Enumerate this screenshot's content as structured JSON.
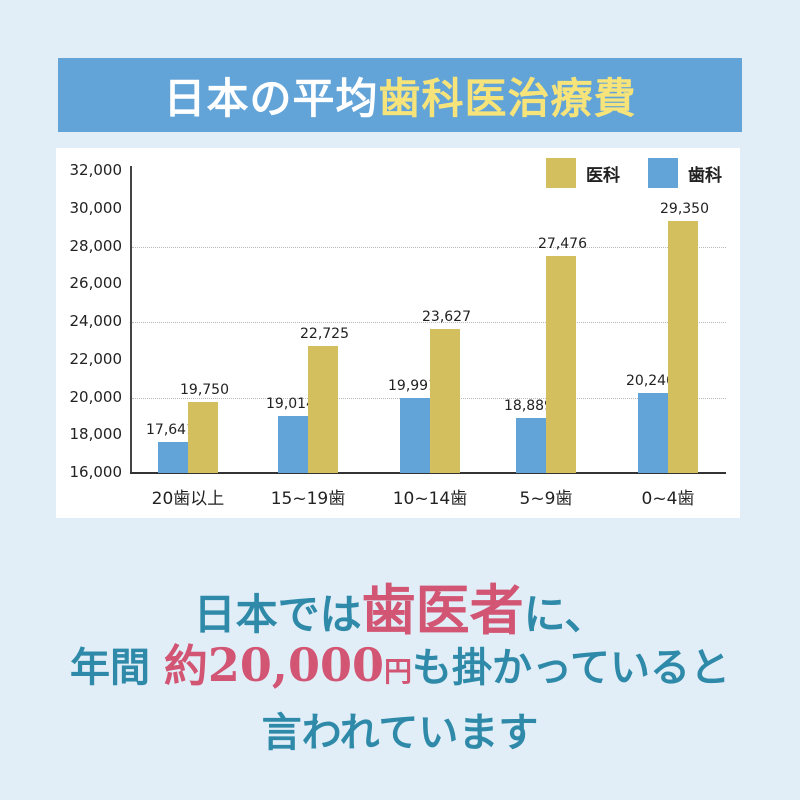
{
  "title": {
    "part1": "日本の平均",
    "part2": "歯科医治療費"
  },
  "colors": {
    "background": "#e1eef8",
    "title_bar": "#62a3d8",
    "title_highlight": "#f6e47b",
    "dental": "#63a4d8",
    "medical": "#d4bf5e",
    "caption": "#2e8aa8",
    "caption_highlight": "#d25574"
  },
  "legend": [
    {
      "label": "医科",
      "color": "#d4bf5e"
    },
    {
      "label": "歯科",
      "color": "#63a4d8"
    }
  ],
  "chart_data": {
    "type": "bar",
    "title": "日本の平均歯科医治療費",
    "categories": [
      "20歯以上",
      "15~19歯",
      "10~14歯",
      "5~9歯",
      "0~4歯"
    ],
    "series": [
      {
        "name": "歯科",
        "values": [
          17641,
          19014,
          19991,
          18889,
          20240
        ]
      },
      {
        "name": "医科",
        "values": [
          19750,
          22725,
          23627,
          27476,
          29350
        ]
      }
    ],
    "value_labels": {
      "歯科": [
        "17,641",
        "19,014",
        "19,991",
        "18,889",
        "20,240"
      ],
      "医科": [
        "19,750",
        "22,725",
        "23,627",
        "27,476",
        "29,350"
      ]
    },
    "xlabel": "",
    "ylabel": "",
    "ylim": [
      16000,
      32000
    ],
    "yticks": [
      "32,000",
      "30,000",
      "28,000",
      "26,000",
      "24,000",
      "22,000",
      "20,000",
      "18,000",
      "16,000"
    ],
    "gridlines": [
      20000,
      24000,
      28000
    ],
    "legend_position": "top-right"
  },
  "caption": {
    "line1": {
      "a": "日本では",
      "b": "歯医者",
      "c": "に、"
    },
    "line2": {
      "a": "年間 ",
      "b": "約",
      "c": "20,000",
      "d": "円",
      "e": "も掛かっていると"
    },
    "line3": "言われています"
  }
}
